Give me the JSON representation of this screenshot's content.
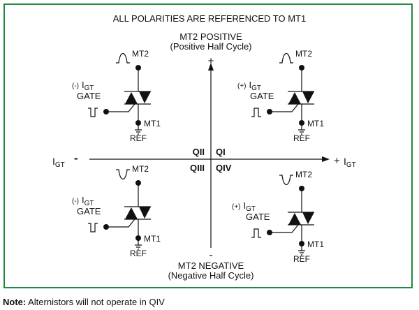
{
  "title": "ALL POLARITIES ARE REFERENCED TO MT1",
  "top_label": {
    "line1": "MT2 POSITIVE",
    "line2": "(Positive Half Cycle)",
    "sign": "+"
  },
  "bottom_label": {
    "line1": "MT2 NEGATIVE",
    "line2": "(Negative Half Cycle)",
    "sign": "-"
  },
  "axis": {
    "left_label": "I",
    "left_sub": "GT",
    "left_sign": "-",
    "right_sign": "+",
    "right_label": "I",
    "right_sub": "GT"
  },
  "quadrants": [
    {
      "name": "QII",
      "gate_polarity": "(-)",
      "mt2_wave": "positive",
      "gate_pulse": "negative"
    },
    {
      "name": "QI",
      "gate_polarity": "(+)",
      "mt2_wave": "positive",
      "gate_pulse": "positive"
    },
    {
      "name": "QIII",
      "gate_polarity": "(-)",
      "mt2_wave": "negative",
      "gate_pulse": "negative"
    },
    {
      "name": "QIV",
      "gate_polarity": "(+)",
      "mt2_wave": "negative",
      "gate_pulse": "positive"
    }
  ],
  "labels": {
    "mt2": "MT2",
    "mt1": "MT1",
    "ref": "REF",
    "gate": "GATE",
    "igt": "I",
    "igt_sub": "GT"
  },
  "note": {
    "bold": "Note:",
    "text": " Alternistors will not operate in QIV"
  },
  "colors": {
    "border": "#1e8a3c"
  }
}
